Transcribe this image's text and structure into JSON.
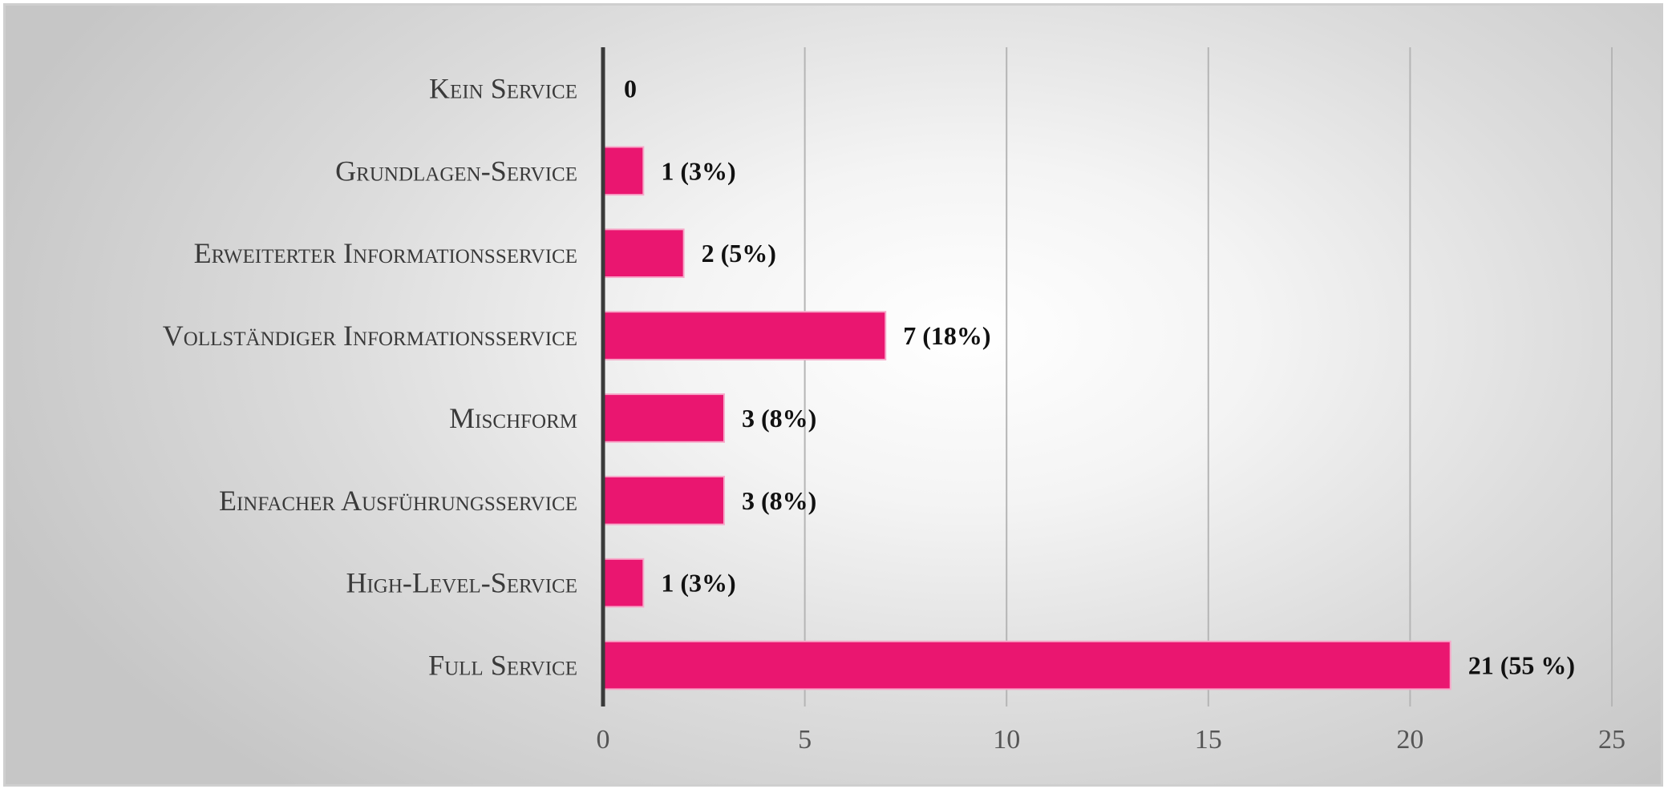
{
  "chart_data": {
    "type": "bar",
    "orientation": "horizontal",
    "categories": [
      "Kein Service",
      "Grundlagen-Service",
      "Erweiterter Informationsservice",
      "Vollständiger Informationsservice",
      "Mischform",
      "Einfacher Ausführungsservice",
      "High-Level-Service",
      "Full Service"
    ],
    "values": [
      0,
      1,
      2,
      7,
      3,
      3,
      1,
      21
    ],
    "data_labels": [
      "0",
      "1 (3%)",
      "2 (5%)",
      "7 (18%)",
      "3 (8%)",
      "3 (8%)",
      "1 (3%)",
      "21 (55 %)"
    ],
    "xlim": [
      0,
      25
    ],
    "xticks": [
      0,
      5,
      10,
      15,
      20,
      25
    ],
    "grid": true,
    "legend": false,
    "bar_color": "#ea1670",
    "bar_edge_color": "#f7a8c9",
    "axis_color": "#3a3a3a",
    "grid_color": "#b5b5b5"
  }
}
